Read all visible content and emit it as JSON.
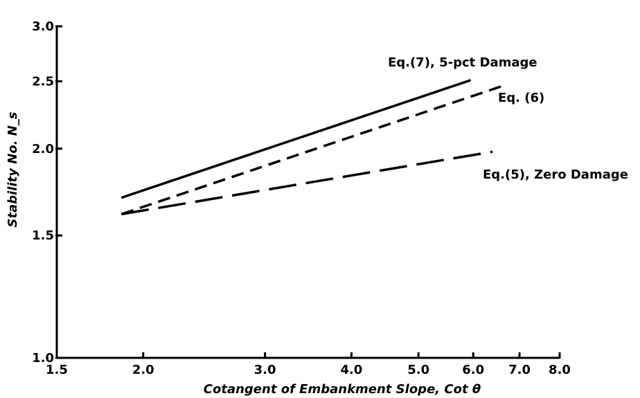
{
  "chart_data": {
    "type": "line",
    "title": "",
    "xlabel": "Cotangent of Embankment Slope, Cot θ",
    "ylabel": "Stability No. N_s",
    "x_scale": "log",
    "y_scale": "log",
    "xlim": [
      1.5,
      8.0
    ],
    "ylim": [
      1.0,
      3.0
    ],
    "x_ticks": [
      1.5,
      2.0,
      3.0,
      4.0,
      5.0,
      6.0,
      7.0,
      8.0
    ],
    "x_tick_labels": [
      "1.5",
      "2.0",
      "3.0",
      "4.0",
      "5.0",
      "6.0",
      "7.0",
      "8.0"
    ],
    "y_ticks": [
      1.0,
      1.5,
      2.0,
      2.5,
      3.0
    ],
    "y_tick_labels": [
      "1.0",
      "1.5",
      "2.0",
      "2.5",
      "3.0"
    ],
    "grid": false,
    "series": [
      {
        "name": "Eq.(7), 5-pct Damage",
        "style": "solid",
        "x": [
          1.86,
          5.95
        ],
        "y": [
          1.7,
          2.51
        ]
      },
      {
        "name": "Eq. (6)",
        "style": "short-dash",
        "x": [
          1.86,
          6.6
        ],
        "y": [
          1.61,
          2.46
        ]
      },
      {
        "name": "Eq.(5), Zero Damage",
        "style": "long-dash",
        "x": [
          1.86,
          6.4
        ],
        "y": [
          1.61,
          1.98
        ]
      }
    ]
  }
}
